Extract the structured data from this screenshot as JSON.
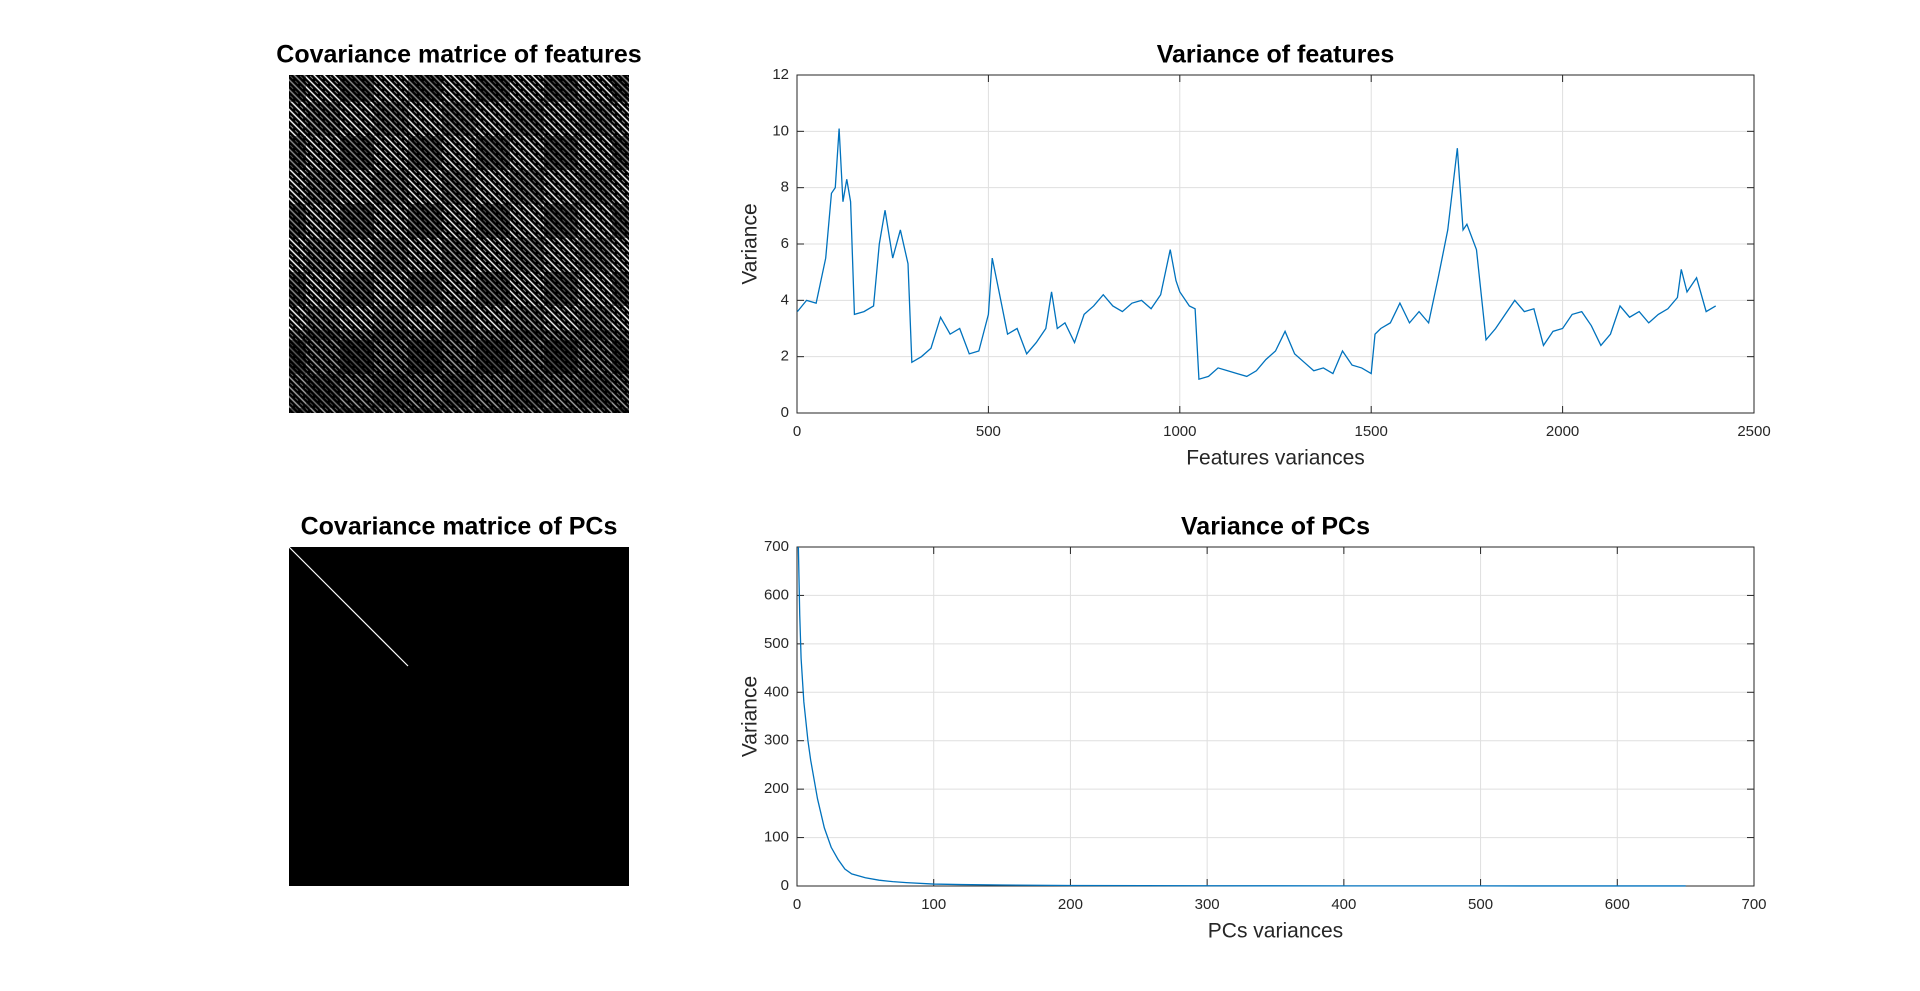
{
  "chart_data": [
    {
      "type": "image",
      "title": "Covariance matrice of features"
    },
    {
      "type": "line",
      "title": "Variance of features",
      "xlabel": "Features variances",
      "ylabel": "Variance",
      "color": "#0072bd",
      "x": [
        1,
        25,
        50,
        75,
        90,
        100,
        110,
        120,
        130,
        140,
        150,
        175,
        200,
        215,
        230,
        250,
        270,
        290,
        300,
        325,
        350,
        375,
        400,
        425,
        450,
        475,
        500,
        510,
        525,
        550,
        575,
        600,
        625,
        650,
        665,
        680,
        700,
        725,
        750,
        775,
        800,
        825,
        850,
        875,
        900,
        925,
        950,
        975,
        990,
        1000,
        1025,
        1040,
        1050,
        1075,
        1100,
        1125,
        1150,
        1175,
        1200,
        1225,
        1250,
        1275,
        1300,
        1325,
        1350,
        1375,
        1400,
        1425,
        1450,
        1475,
        1500,
        1510,
        1525,
        1550,
        1575,
        1600,
        1625,
        1650,
        1675,
        1700,
        1725,
        1740,
        1750,
        1775,
        1800,
        1825,
        1850,
        1875,
        1900,
        1925,
        1950,
        1975,
        2000,
        2025,
        2050,
        2075,
        2100,
        2125,
        2150,
        2175,
        2200,
        2225,
        2250,
        2275,
        2300,
        2310,
        2325,
        2350,
        2375,
        2400
      ],
      "values": [
        3.6,
        4.0,
        3.9,
        5.5,
        7.8,
        8,
        10.1,
        7.5,
        8.3,
        7.5,
        3.5,
        3.6,
        3.8,
        6,
        7.2,
        5.5,
        6.5,
        5.3,
        1.8,
        2,
        2.3,
        3.4,
        2.8,
        3,
        2.1,
        2.2,
        3.5,
        5.5,
        4.5,
        2.8,
        3,
        2.1,
        2.5,
        3,
        4.3,
        3,
        3.2,
        2.5,
        3.5,
        3.8,
        4.2,
        3.8,
        3.6,
        3.9,
        4,
        3.7,
        4.2,
        5.8,
        4.7,
        4.3,
        3.8,
        3.7,
        1.2,
        1.3,
        1.6,
        1.5,
        1.4,
        1.3,
        1.5,
        1.9,
        2.2,
        2.9,
        2.1,
        1.8,
        1.5,
        1.6,
        1.4,
        2.2,
        1.7,
        1.6,
        1.4,
        2.8,
        3,
        3.2,
        3.9,
        3.2,
        3.6,
        3.2,
        4.8,
        6.5,
        9.4,
        6.5,
        6.7,
        5.8,
        2.6,
        3,
        3.5,
        4,
        3.6,
        3.7,
        2.4,
        2.9,
        3.0,
        3.5,
        3.6,
        3.1,
        2.4,
        2.8,
        3.8,
        3.4,
        3.6,
        3.2,
        3.5,
        3.7,
        4.1,
        5.1,
        4.3,
        4.8,
        3.6,
        3.8
      ],
      "xlim": [
        0,
        2500
      ],
      "xticks": [
        0,
        500,
        1000,
        1500,
        2000,
        2500
      ],
      "ylim": [
        0,
        12
      ],
      "yticks": [
        0,
        2,
        4,
        6,
        8,
        10,
        12
      ],
      "grid": true
    },
    {
      "type": "image",
      "title": "Covariance matrice of PCs"
    },
    {
      "type": "line",
      "title": "Variance of PCs",
      "xlabel": "PCs variances",
      "ylabel": "Variance",
      "color": "#0072bd",
      "x": [
        1,
        2,
        3,
        5,
        8,
        10,
        15,
        20,
        25,
        30,
        35,
        40,
        50,
        60,
        70,
        80,
        100,
        120,
        150,
        200,
        300,
        400,
        500,
        600,
        650
      ],
      "values": [
        700,
        560,
        470,
        380,
        300,
        260,
        180,
        120,
        80,
        55,
        35,
        25,
        17,
        12,
        9,
        7,
        4,
        3,
        2,
        1,
        0.5,
        0.3,
        0.2,
        0.1,
        0.1
      ],
      "xlim": [
        0,
        700
      ],
      "xticks": [
        0,
        100,
        200,
        300,
        400,
        500,
        600,
        700
      ],
      "ylim": [
        0,
        700
      ],
      "yticks": [
        0,
        100,
        200,
        300,
        400,
        500,
        600,
        700
      ],
      "grid": true
    }
  ]
}
